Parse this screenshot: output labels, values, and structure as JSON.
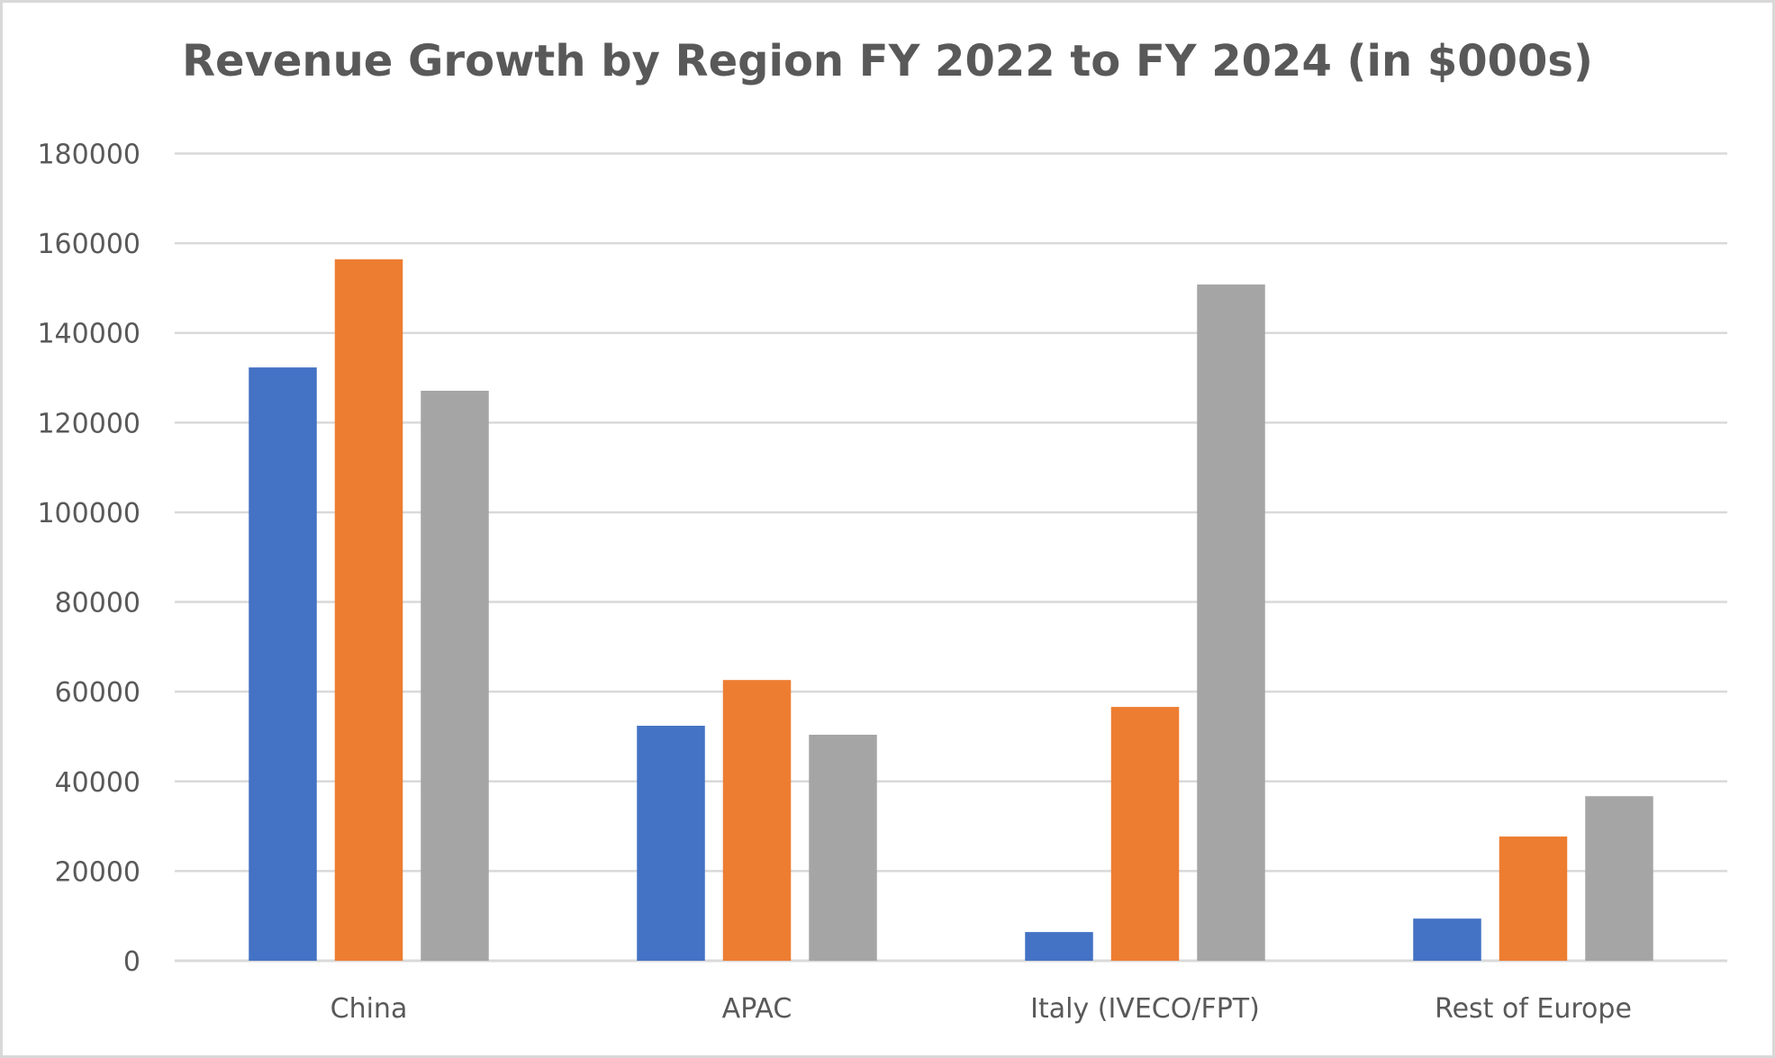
{
  "chart_data": {
    "type": "bar",
    "title": "Revenue Growth by Region FY 2022 to FY 2024 (in $000s)",
    "xlabel": "",
    "ylabel": "",
    "categories": [
      "China",
      "APAC",
      "Italy (IVECO/FPT)",
      "Rest of Europe"
    ],
    "series": [
      {
        "name": "",
        "color": "#4472c4",
        "values": [
          132300,
          52400,
          6400,
          9400
        ]
      },
      {
        "name": "",
        "color": "#ed7d31",
        "values": [
          156400,
          62600,
          56600,
          27700
        ]
      },
      {
        "name": "",
        "color": "#a5a5a5",
        "values": [
          127100,
          50400,
          150800,
          36700
        ]
      }
    ],
    "ylim": [
      0,
      180000
    ],
    "yticks": [
      0,
      20000,
      40000,
      60000,
      80000,
      100000,
      120000,
      140000,
      160000,
      180000
    ],
    "ytick_labels": [
      "0",
      "20000",
      "40000",
      "60000",
      "80000",
      "100000",
      "120000",
      "140000",
      "160000",
      "180000"
    ],
    "grid": true,
    "legend": "none"
  },
  "colors": {
    "title": "#595959",
    "axis_text": "#595959",
    "gridline": "#d9d9d9",
    "border": "#d9d9d9"
  }
}
